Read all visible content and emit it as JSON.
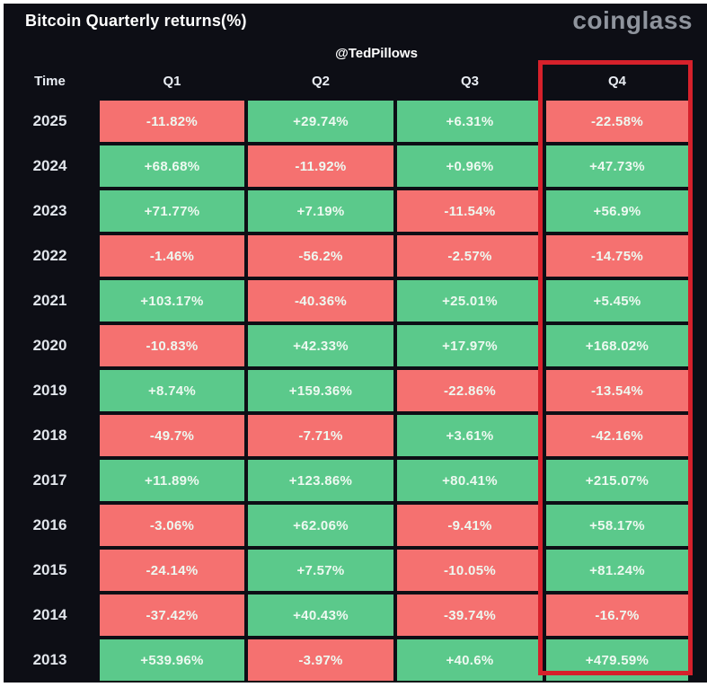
{
  "header": {
    "title": "Bitcoin Quarterly returns(%)",
    "logo": "coinglass",
    "attribution": "@TedPillows"
  },
  "colors": {
    "panel-bg": "#0d0e15",
    "green": "#5bc98b",
    "red": "#f57170",
    "cell-text": "#eef9f1",
    "year-text": "#e2e6ec",
    "header-text": "#e9edf3",
    "logo-gray": "#8f949d",
    "hl-red": "#d6212b",
    "page-bg": "#ffffff"
  },
  "chart_data": {
    "type": "table",
    "title": "Bitcoin Quarterly returns(%)",
    "columns": [
      "Time",
      "Q1",
      "Q2",
      "Q3",
      "Q4"
    ],
    "highlighted_column": "Q4",
    "color_coding": {
      "positive": "green",
      "negative": "red"
    },
    "rows": [
      {
        "year": "2025",
        "values": [
          "-11.82%",
          "+29.74%",
          "+6.31%",
          "-22.58%"
        ]
      },
      {
        "year": "2024",
        "values": [
          "+68.68%",
          "-11.92%",
          "+0.96%",
          "+47.73%"
        ]
      },
      {
        "year": "2023",
        "values": [
          "+71.77%",
          "+7.19%",
          "-11.54%",
          "+56.9%"
        ]
      },
      {
        "year": "2022",
        "values": [
          "-1.46%",
          "-56.2%",
          "-2.57%",
          "-14.75%"
        ]
      },
      {
        "year": "2021",
        "values": [
          "+103.17%",
          "-40.36%",
          "+25.01%",
          "+5.45%"
        ]
      },
      {
        "year": "2020",
        "values": [
          "-10.83%",
          "+42.33%",
          "+17.97%",
          "+168.02%"
        ]
      },
      {
        "year": "2019",
        "values": [
          "+8.74%",
          "+159.36%",
          "-22.86%",
          "-13.54%"
        ]
      },
      {
        "year": "2018",
        "values": [
          "-49.7%",
          "-7.71%",
          "+3.61%",
          "-42.16%"
        ]
      },
      {
        "year": "2017",
        "values": [
          "+11.89%",
          "+123.86%",
          "+80.41%",
          "+215.07%"
        ]
      },
      {
        "year": "2016",
        "values": [
          "-3.06%",
          "+62.06%",
          "-9.41%",
          "+58.17%"
        ]
      },
      {
        "year": "2015",
        "values": [
          "-24.14%",
          "+7.57%",
          "-10.05%",
          "+81.24%"
        ]
      },
      {
        "year": "2014",
        "values": [
          "-37.42%",
          "+40.43%",
          "-39.74%",
          "-16.7%"
        ]
      },
      {
        "year": "2013",
        "values": [
          "+539.96%",
          "-3.97%",
          "+40.6%",
          "+479.59%"
        ]
      }
    ]
  }
}
